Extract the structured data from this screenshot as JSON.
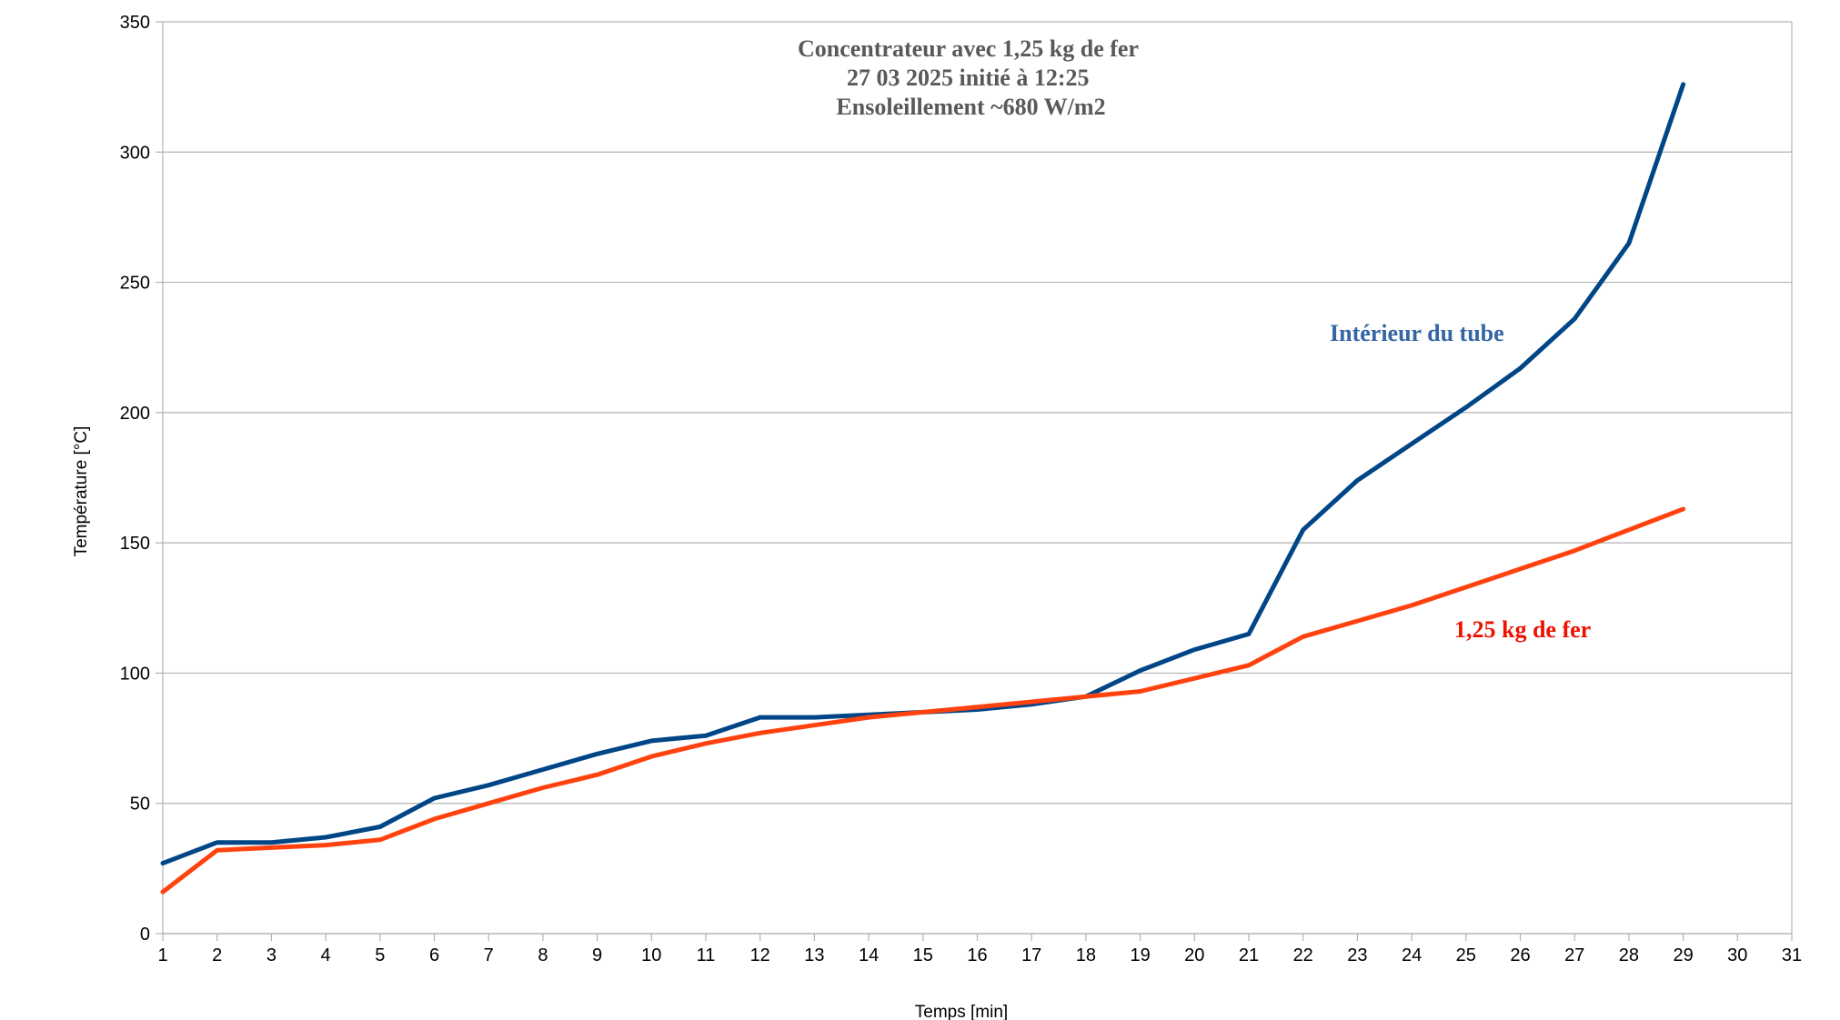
{
  "chart_data": {
    "type": "line",
    "title_lines": [
      "Concentrateur avec 1,25 kg de fer",
      "27 03 2025 initié à 12:25",
      "Ensoleillement ~680 W/m2"
    ],
    "xlabel": "Temps [min]",
    "ylabel": "Température [°C]",
    "xlim": [
      1,
      31
    ],
    "ylim": [
      0,
      350
    ],
    "x_ticks": [
      1,
      2,
      3,
      4,
      5,
      6,
      7,
      8,
      9,
      10,
      11,
      12,
      13,
      14,
      15,
      16,
      17,
      18,
      19,
      20,
      21,
      22,
      23,
      24,
      25,
      26,
      27,
      28,
      29,
      30,
      31
    ],
    "y_ticks": [
      0,
      50,
      100,
      150,
      200,
      250,
      300,
      350
    ],
    "grid": "horizontal",
    "x": [
      1,
      2,
      3,
      4,
      5,
      6,
      7,
      8,
      9,
      10,
      11,
      12,
      13,
      14,
      15,
      16,
      17,
      18,
      19,
      20,
      21,
      22,
      23,
      24,
      25,
      26,
      27,
      28,
      29
    ],
    "series": [
      {
        "name": "Intérieur du tube",
        "color": "#004586",
        "label_color": "#3465a4",
        "values": [
          27,
          35,
          35,
          37,
          41,
          52,
          57,
          63,
          69,
          74,
          76,
          83,
          83,
          84,
          85,
          86,
          88,
          91,
          101,
          109,
          115,
          155,
          174,
          188,
          202,
          217,
          236,
          265,
          326
        ]
      },
      {
        "name": "1,25 kg de fer",
        "color": "#ff420e",
        "label_color": "#ee1100",
        "values": [
          16,
          32,
          33,
          34,
          36,
          44,
          50,
          56,
          61,
          68,
          73,
          77,
          80,
          83,
          85,
          87,
          89,
          91,
          93,
          98,
          103,
          114,
          120,
          126,
          133,
          140,
          147,
          155,
          163
        ]
      }
    ]
  }
}
